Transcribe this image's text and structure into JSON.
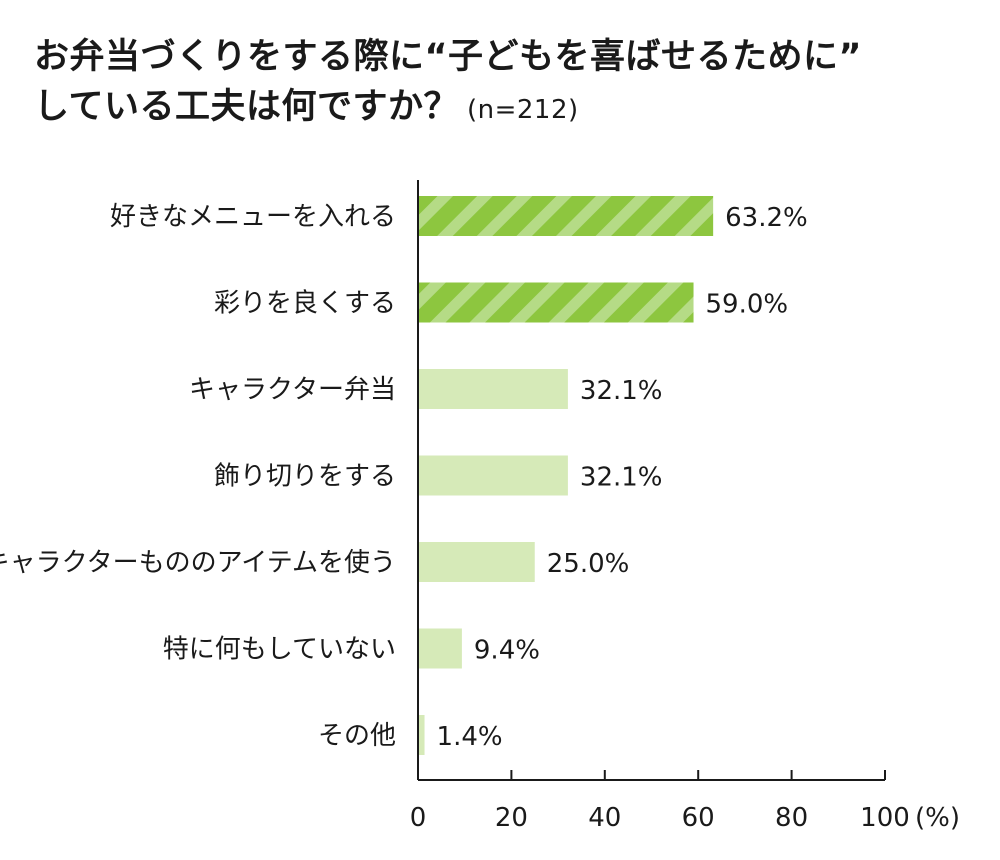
{
  "title_line1": "お弁当づくりをする際に“子どもを喜ばせるために”",
  "title_line2": "している工夫は何ですか？",
  "sample_size": "(n=212)",
  "colors": {
    "highlight_bar": "#8dc63f",
    "highlight_stripe": "#b5db86",
    "normal_bar": "#d6eab8",
    "axis": "#1a1a1a"
  },
  "chart_data": {
    "type": "bar",
    "orientation": "horizontal",
    "categories": [
      "好きなメニューを入れる",
      "彩りを良くする",
      "キャラクター弁当",
      "飾り切りをする",
      "キャラクターもののアイテムを使う",
      "特に何もしていない",
      "その他"
    ],
    "values": [
      63.2,
      59.0,
      32.1,
      32.1,
      25.0,
      9.4,
      1.4
    ],
    "value_labels": [
      "63.2%",
      "59.0%",
      "32.1%",
      "32.1%",
      "25.0%",
      "9.4%",
      "1.4%"
    ],
    "highlighted": [
      true,
      true,
      false,
      false,
      false,
      false,
      false
    ],
    "xlim": [
      0,
      100
    ],
    "xticks": [
      "0",
      "20",
      "40",
      "60",
      "80",
      "100"
    ],
    "xunit": "(%)",
    "grid": false
  }
}
